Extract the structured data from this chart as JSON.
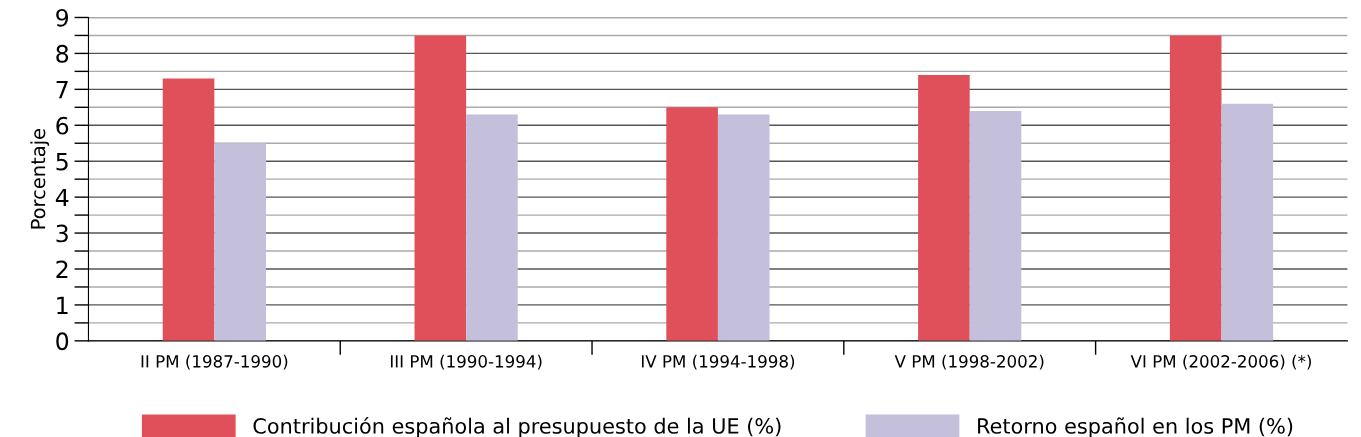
{
  "chart_data": {
    "type": "bar",
    "ylabel": "Porcentaje",
    "categories": [
      "II PM (1987-1990)",
      "III PM (1990-1994)",
      "IV PM (1994-1998)",
      "V PM (1998-2002)",
      "VI PM (2002-2006) (*)"
    ],
    "series": [
      {
        "name": "Contribución española al presupuesto de la UE (%)",
        "color": "#e0505a",
        "values": [
          7.3,
          8.5,
          6.5,
          7.4,
          8.5
        ]
      },
      {
        "name": "Retorno español en los PM (%)",
        "color": "#c4c0dc",
        "values": [
          5.5,
          6.3,
          6.3,
          6.4,
          6.6
        ]
      }
    ],
    "ylim": [
      0,
      9
    ],
    "yticks": [
      0,
      {
        "value": 0.5,
        "label": null
      },
      1,
      {
        "value": 1.5,
        "label": null
      },
      2,
      {
        "value": 2.5,
        "label": null
      },
      3,
      {
        "value": 3.5,
        "label": null
      },
      4,
      {
        "value": 4.5,
        "label": null
      },
      5,
      {
        "value": 5.5,
        "label": null
      },
      6,
      {
        "value": 6.5,
        "label": null
      },
      7,
      {
        "value": 7.5,
        "label": null
      },
      8,
      {
        "value": 8.5,
        "label": null
      },
      9
    ],
    "grid": "y",
    "legend": "bottom"
  }
}
